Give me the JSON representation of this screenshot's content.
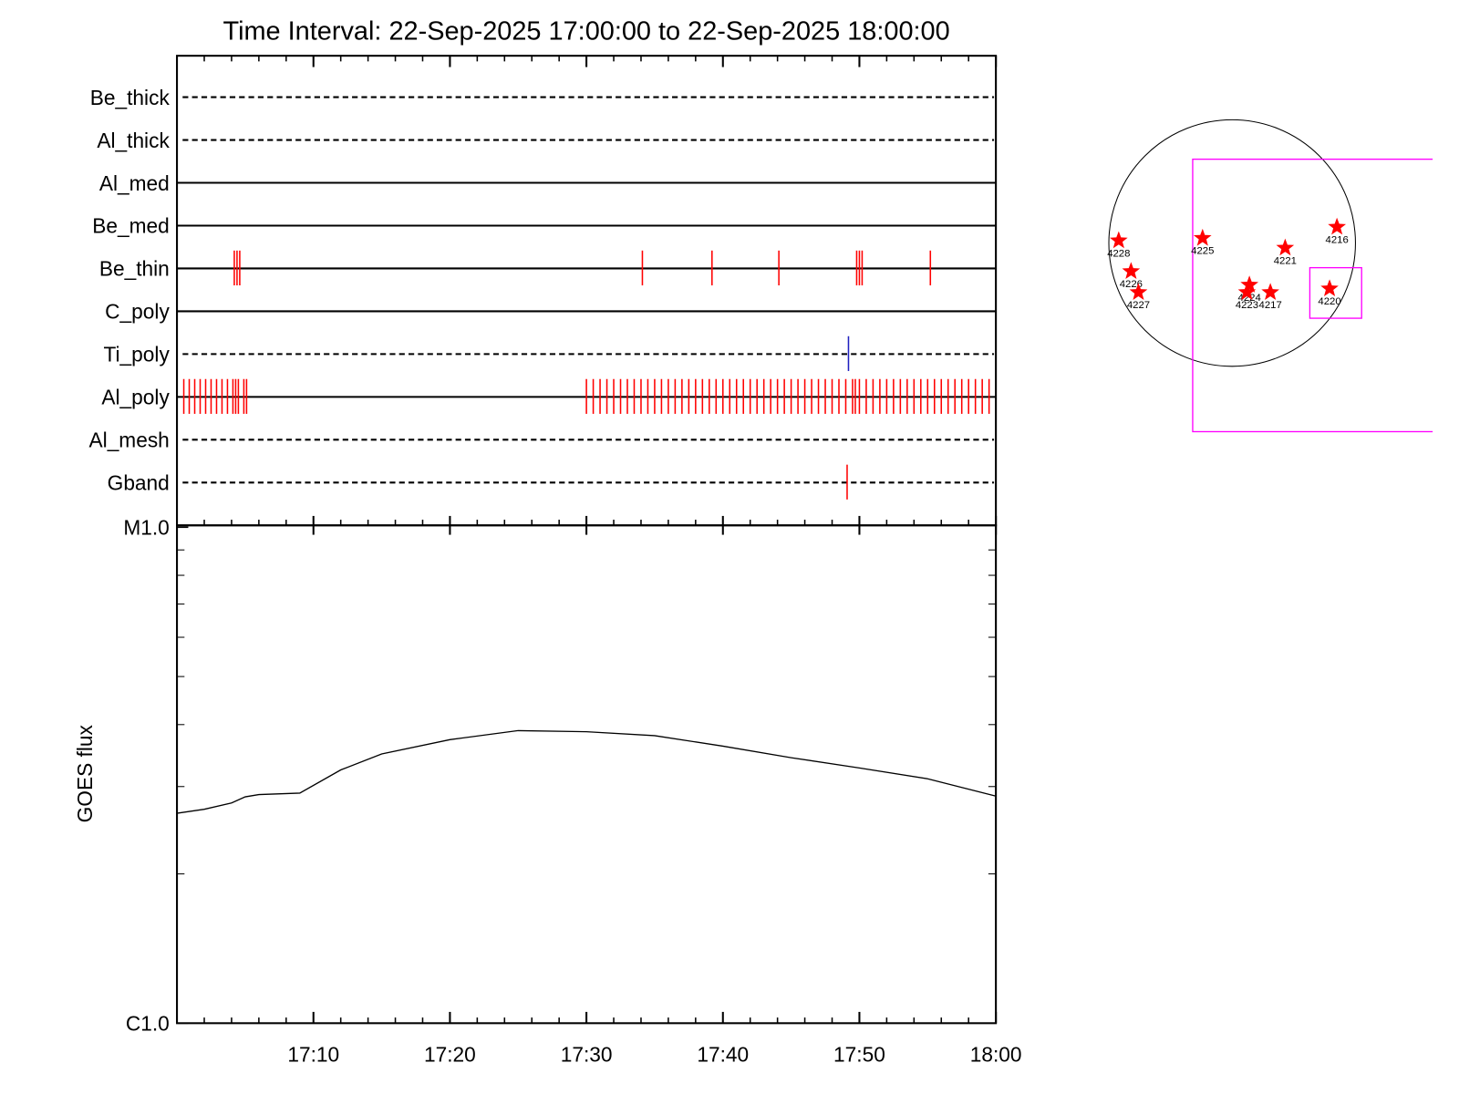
{
  "chart_data": [
    {
      "type": "event",
      "title": "Time Interval: 22-Sep-2025 17:00:00 to 22-Sep-2025 18:00:00",
      "xlim": [
        0,
        60
      ],
      "rows": [
        {
          "name": "Be_thick",
          "line_style": "dashed",
          "events": []
        },
        {
          "name": "Al_thick",
          "line_style": "dashed",
          "events": []
        },
        {
          "name": "Al_med",
          "line_style": "solid",
          "events": []
        },
        {
          "name": "Be_med",
          "line_style": "solid",
          "events": []
        },
        {
          "name": "Be_thin",
          "line_style": "solid",
          "color": "#ff0000",
          "events": [
            4.2,
            4.4,
            4.6,
            34.1,
            39.2,
            44.1,
            49.8,
            50.0,
            50.2,
            55.2
          ]
        },
        {
          "name": "C_poly",
          "line_style": "solid",
          "events": []
        },
        {
          "name": "Ti_poly",
          "line_style": "dashed",
          "color": "#2020c0",
          "events": [
            49.2
          ]
        },
        {
          "name": "Al_poly",
          "line_style": "solid",
          "color": "#ff0000",
          "events": [
            0.5,
            0.9,
            1.3,
            1.7,
            2.1,
            2.5,
            2.9,
            3.3,
            3.7,
            4.1,
            4.3,
            4.5,
            4.9,
            5.1,
            30.0,
            30.5,
            31.0,
            31.5,
            32.0,
            32.5,
            33.0,
            33.5,
            34.0,
            34.5,
            35.0,
            35.5,
            36.0,
            36.5,
            37.0,
            37.5,
            38.0,
            38.5,
            39.0,
            39.5,
            40.0,
            40.5,
            41.0,
            41.5,
            42.0,
            42.5,
            43.0,
            43.5,
            44.0,
            44.5,
            45.0,
            45.5,
            46.0,
            46.5,
            47.0,
            47.5,
            48.0,
            48.5,
            49.0,
            49.5,
            49.7,
            50.0,
            50.5,
            51.0,
            51.5,
            52.0,
            52.5,
            53.0,
            53.5,
            54.0,
            54.5,
            55.0,
            55.5,
            56.0,
            56.5,
            57.0,
            57.5,
            58.0,
            58.5,
            59.0,
            59.5
          ]
        },
        {
          "name": "Al_mesh",
          "line_style": "dashed",
          "events": []
        },
        {
          "name": "Gband",
          "line_style": "dashed",
          "color": "#ff0000",
          "events": [
            49.1
          ]
        }
      ]
    },
    {
      "type": "line",
      "ylabel": "GOES flux",
      "scale": "log",
      "color": "#000000",
      "x": [
        0,
        2,
        4,
        5,
        6,
        9,
        12,
        15,
        20,
        25,
        30,
        35,
        40,
        45,
        50,
        55,
        60
      ],
      "values": [
        2.65e-06,
        2.7e-06,
        2.78e-06,
        2.86e-06,
        2.89e-06,
        2.91e-06,
        3.24e-06,
        3.49e-06,
        3.73e-06,
        3.89e-06,
        3.87e-06,
        3.8e-06,
        3.62e-06,
        3.43e-06,
        3.27e-06,
        3.11e-06,
        2.87e-06
      ],
      "xlim": [
        0,
        60
      ],
      "xticks": [
        {
          "value": 10,
          "label": "17:10"
        },
        {
          "value": 20,
          "label": "17:20"
        },
        {
          "value": 30,
          "label": "17:30"
        },
        {
          "value": 40,
          "label": "17:40"
        },
        {
          "value": 50,
          "label": "17:50"
        },
        {
          "value": 60,
          "label": "18:00"
        }
      ],
      "xminor": [
        2,
        4,
        6,
        8,
        12,
        14,
        16,
        18,
        22,
        24,
        26,
        28,
        32,
        34,
        36,
        38,
        42,
        44,
        46,
        48,
        52,
        54,
        56,
        58
      ],
      "ylim": [
        1e-06,
        1e-05
      ],
      "yticks": [
        {
          "value": 1e-06,
          "label": "C1.0"
        },
        {
          "value": 1e-05,
          "label": "M1.0"
        }
      ],
      "yminor": [
        2e-06,
        3e-06,
        4e-06,
        5e-06,
        6e-06,
        7e-06,
        8e-06,
        9e-06
      ]
    },
    {
      "type": "map",
      "disk_radius": 1,
      "color": "#ff0000",
      "box_color": "#ff00ff",
      "points": [
        {
          "label": "4228",
          "x": -0.92,
          "y": 0.02
        },
        {
          "label": "4225",
          "x": -0.24,
          "y": 0.04
        },
        {
          "label": "4221",
          "x": 0.43,
          "y": -0.04
        },
        {
          "label": "4216",
          "x": 0.85,
          "y": 0.13
        },
        {
          "label": "4226",
          "x": -0.82,
          "y": -0.23
        },
        {
          "label": "4227",
          "x": -0.76,
          "y": -0.4
        },
        {
          "label": "4224",
          "x": 0.14,
          "y": -0.34
        },
        {
          "label": "4223",
          "x": 0.12,
          "y": -0.4
        },
        {
          "label": "4217",
          "x": 0.31,
          "y": -0.4
        },
        {
          "label": "4220",
          "x": 0.79,
          "y": -0.37
        }
      ],
      "boxes": [
        {
          "xlim": [
            -0.32,
            2.5
          ],
          "ylim": [
            -1.53,
            0.68
          ]
        },
        {
          "xlim": [
            0.63,
            1.05
          ],
          "ylim": [
            -0.61,
            -0.2
          ]
        }
      ]
    }
  ]
}
